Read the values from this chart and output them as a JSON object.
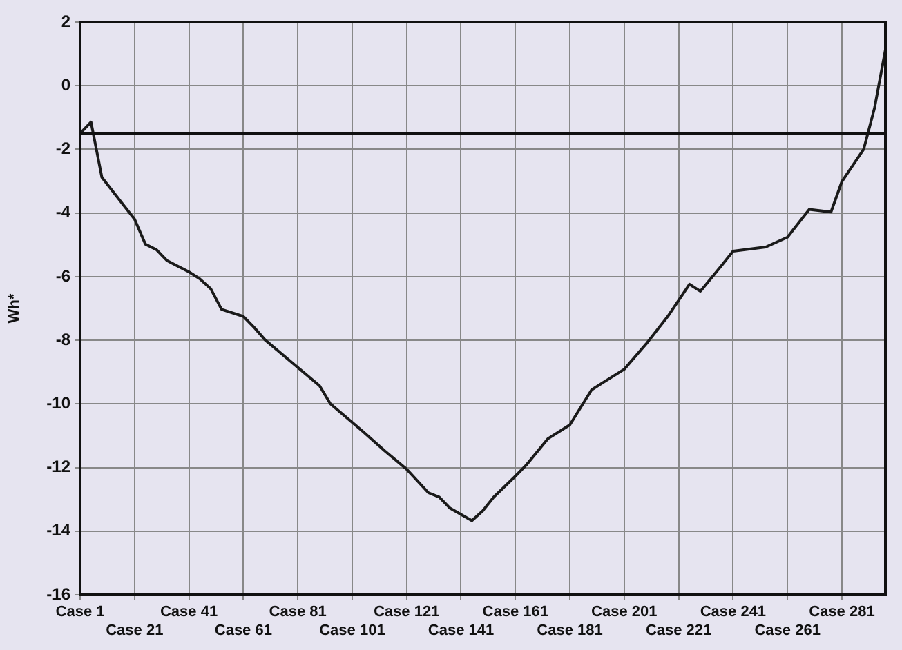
{
  "chart_data": {
    "type": "line",
    "ylabel": "Wh*",
    "categories": [
      "Case 1",
      null,
      null,
      null,
      null,
      "Case 21",
      null,
      null,
      null,
      null,
      "Case 41",
      null,
      null,
      null,
      null,
      "Case 61",
      null,
      null,
      null,
      null,
      "Case 81",
      null,
      null,
      null,
      null,
      "Case 101",
      null,
      null,
      null,
      null,
      "Case 121",
      null,
      null,
      null,
      null,
      "Case 141",
      null,
      null,
      null,
      null,
      "Case 161",
      null,
      null,
      null,
      null,
      "Case 181",
      null,
      null,
      null,
      null,
      "Case 201",
      null,
      null,
      null,
      null,
      "Case 221",
      null,
      null,
      null,
      null,
      "Case 241",
      null,
      null,
      null,
      null,
      "Case 261",
      null,
      null,
      null,
      null,
      "Case 281",
      null,
      null,
      null,
      null
    ],
    "series": [
      {
        "color": "#1a1a1a",
        "values": [
          -1.5,
          -1.14,
          -2.88,
          -3.32,
          -3.76,
          -4.19,
          -4.98,
          -5.15,
          -5.5,
          null,
          -5.85,
          -6.07,
          -6.38,
          -7.03,
          null,
          -7.25,
          -7.6,
          -7.99,
          null,
          null,
          null,
          null,
          -9.43,
          -10.0,
          null,
          null,
          -10.87,
          null,
          -11.48,
          null,
          -12.05,
          null,
          -12.79,
          -12.93,
          -13.28,
          null,
          -13.67,
          -13.36,
          -12.93,
          null,
          -12.27,
          -11.92,
          null,
          -11.09,
          null,
          -10.66,
          null,
          -9.56,
          -9.34,
          null,
          -8.91,
          null,
          -8.12,
          null,
          -7.25,
          null,
          -6.24,
          -6.46,
          null,
          -5.63,
          -5.2,
          null,
          null,
          -5.07,
          null,
          -4.76,
          -4.32,
          -3.89,
          null,
          -3.97,
          -3.01,
          null,
          -2.0,
          -0.7,
          1.13
        ]
      }
    ],
    "ylim": [
      -16,
      2
    ],
    "yticks": [
      -16,
      -14,
      -12,
      -10,
      -8,
      -6,
      -4,
      -2,
      0,
      2
    ],
    "ref_lines": [
      {
        "axis": "y",
        "value": -1.5,
        "color": "#111111"
      }
    ],
    "grid": true,
    "legend": false,
    "marker": "none",
    "line_style": "solid"
  }
}
